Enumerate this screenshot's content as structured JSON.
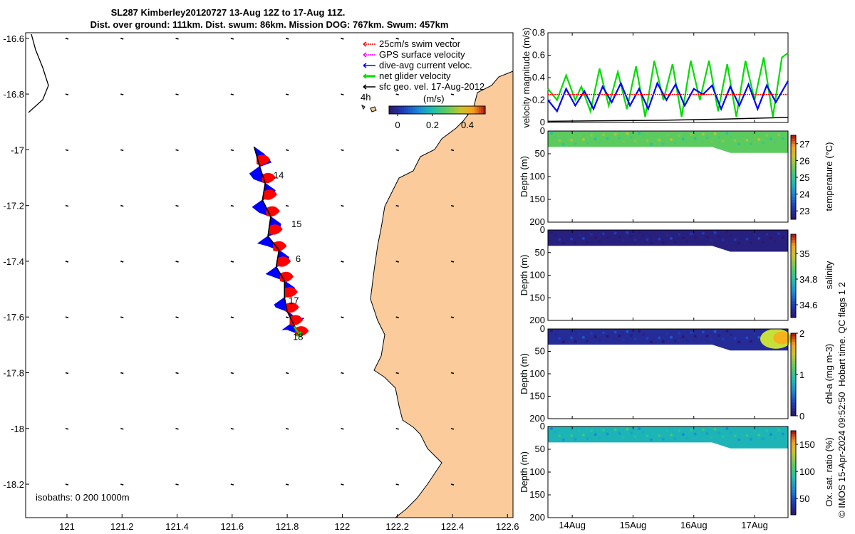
{
  "map": {
    "title_line1": "SL287 Kimberley20120727 13-Aug 12Z to 17-Aug 11Z.",
    "title_line2": "Dist. over ground: 111km. Dist. swum: 86km. Mission DOG: 767km. Swum: 457km",
    "legend": [
      {
        "label": "25cm/s swim vector",
        "color": "#ff0000"
      },
      {
        "label": "GPS surface velocity",
        "color": "#ff00ff"
      },
      {
        "label": "dive-avg current veloc.",
        "color": "#0000ff"
      },
      {
        "label": "net glider velocity",
        "color": "#00dd00"
      },
      {
        "label": "sfc geo. vel. 17-Aug-2012",
        "color": "#000000"
      }
    ],
    "scale_label": "4h",
    "colorbar_unit": "(m/s)",
    "colorbar_ticks": [
      "0",
      "0.2",
      "0.4"
    ],
    "isobaths": "isobaths: 0   200  1000m",
    "day_labels": [
      "14",
      "15",
      "6",
      "17",
      "18"
    ],
    "colors": {
      "land": "#fbcb9b",
      "track": "#0000ff",
      "swim": "#ff0000",
      "net": "#00dd00"
    }
  },
  "chart_data": [
    {
      "type": "scatter",
      "name": "glider track map",
      "xlabel": "",
      "ylabel": "",
      "xlim": [
        120.85,
        122.62
      ],
      "ylim": [
        -18.32,
        -16.58
      ],
      "x_ticks": [
        "121",
        "121.2",
        "121.4",
        "121.6",
        "121.8",
        "122",
        "122.2",
        "122.4",
        "122.6"
      ],
      "y_ticks": [
        "-16.6",
        "-16.8",
        "-17",
        "-17.2",
        "-17.4",
        "-17.6",
        "-17.8",
        "-18",
        "-18.2"
      ],
      "track": {
        "x": [
          121.68,
          121.7,
          121.72,
          121.71,
          121.74,
          121.73,
          121.77,
          121.76,
          121.79,
          121.79,
          121.8,
          121.82,
          121.84
        ],
        "y": [
          -16.99,
          -17.06,
          -17.12,
          -17.18,
          -17.24,
          -17.31,
          -17.36,
          -17.42,
          -17.47,
          -17.53,
          -17.58,
          -17.62,
          -17.66
        ]
      }
    },
    {
      "type": "line",
      "xlabel": "",
      "ylabel": "velocity magnitude (m/s)",
      "ylim": [
        0,
        0.8
      ],
      "y_ticks": [
        "0",
        "0.2",
        "0.4",
        "0.6",
        "0.8"
      ],
      "xlim": [
        13.6,
        17.55
      ],
      "x_ticks": [
        "14Aug",
        "15Aug",
        "16Aug",
        "17Aug"
      ],
      "series": [
        {
          "color": "#00dd00",
          "x": [
            13.6,
            13.75,
            13.9,
            14.05,
            14.15,
            14.3,
            14.45,
            14.6,
            14.75,
            14.9,
            15.05,
            15.2,
            15.35,
            15.5,
            15.65,
            15.8,
            15.95,
            16.1,
            16.25,
            16.4,
            16.55,
            16.7,
            16.85,
            17.0,
            17.15,
            17.3,
            17.45,
            17.55
          ],
          "values": [
            0.3,
            0.2,
            0.42,
            0.2,
            0.32,
            0.1,
            0.48,
            0.15,
            0.45,
            0.12,
            0.5,
            0.05,
            0.55,
            0.2,
            0.52,
            0.05,
            0.55,
            0.2,
            0.55,
            0.1,
            0.52,
            0.05,
            0.55,
            0.2,
            0.58,
            0.05,
            0.58,
            0.62
          ]
        },
        {
          "color": "#0000ff",
          "x": [
            13.6,
            13.75,
            13.9,
            14.05,
            14.2,
            14.35,
            14.5,
            14.65,
            14.8,
            14.95,
            15.1,
            15.25,
            15.4,
            15.55,
            15.7,
            15.85,
            16.0,
            16.15,
            16.3,
            16.45,
            16.6,
            16.75,
            16.9,
            17.05,
            17.2,
            17.35,
            17.55
          ],
          "values": [
            0.2,
            0.1,
            0.3,
            0.15,
            0.28,
            0.12,
            0.32,
            0.18,
            0.35,
            0.15,
            0.3,
            0.12,
            0.35,
            0.2,
            0.34,
            0.15,
            0.3,
            0.25,
            0.33,
            0.12,
            0.32,
            0.15,
            0.34,
            0.12,
            0.33,
            0.18,
            0.37
          ]
        },
        {
          "color": "#ff0000",
          "x": [
            13.6,
            17.55
          ],
          "values": [
            0.25,
            0.25
          ]
        },
        {
          "color": "#000000",
          "x": [
            13.6,
            14.5,
            15.5,
            16.5,
            17.55
          ],
          "values": [
            0.01,
            0.015,
            0.02,
            0.03,
            0.045
          ]
        }
      ]
    },
    {
      "type": "heatmap",
      "xlabel": "",
      "ylabel": "Depth (m)",
      "ylim": [
        200,
        0
      ],
      "y_ticks": [
        "0",
        "50",
        "100",
        "150",
        "200"
      ],
      "colorbar_label": "temperature (°C)",
      "colorbar_ticks": [
        "23",
        "24",
        "25",
        "26",
        "27"
      ],
      "colorbar_range": [
        22.5,
        27.5
      ],
      "section_value": 25.5
    },
    {
      "type": "heatmap",
      "xlabel": "",
      "ylabel": "Depth (m)",
      "ylim": [
        200,
        0
      ],
      "y_ticks": [
        "0",
        "50",
        "100",
        "150",
        "200"
      ],
      "colorbar_label": "salinity",
      "colorbar_ticks": [
        "34.6",
        "34.8",
        "35"
      ],
      "colorbar_range": [
        34.5,
        35.15
      ],
      "section_value": 34.52
    },
    {
      "type": "heatmap",
      "xlabel": "",
      "ylabel": "Depth (m)",
      "ylim": [
        200,
        0
      ],
      "y_ticks": [
        "0",
        "50",
        "100",
        "150",
        "200"
      ],
      "colorbar_label": "chl-a (mg m-3)",
      "colorbar_ticks": [
        "0",
        "1",
        "2"
      ],
      "colorbar_range": [
        0,
        2
      ],
      "section_value": 0.15
    },
    {
      "type": "heatmap",
      "xlabel": "",
      "ylabel": "Depth (m)",
      "ylim": [
        200,
        0
      ],
      "y_ticks": [
        "0",
        "50",
        "100",
        "150",
        "200"
      ],
      "colorbar_label": "Ox. sat. ratio (%)",
      "colorbar_ticks": [
        "50",
        "100",
        "150"
      ],
      "colorbar_range": [
        20,
        175
      ],
      "section_value": 85,
      "x_ticks": [
        "14Aug",
        "15Aug",
        "16Aug",
        "17Aug"
      ]
    }
  ],
  "footer": {
    "qc_note": "Hobart time. QC flags 1  2",
    "credit": "© IMOS 15-Apr-2024 09:52:50"
  }
}
